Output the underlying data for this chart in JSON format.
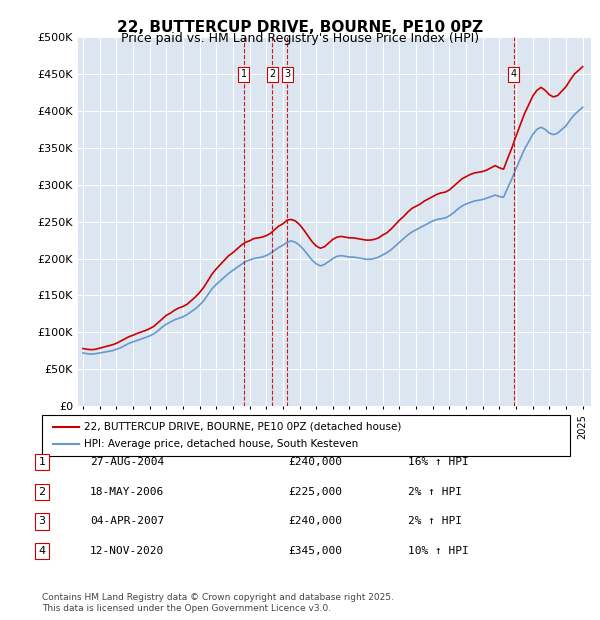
{
  "title": "22, BUTTERCUP DRIVE, BOURNE, PE10 0PZ",
  "subtitle": "Price paid vs. HM Land Registry's House Price Index (HPI)",
  "legend_line1": "22, BUTTERCUP DRIVE, BOURNE, PE10 0PZ (detached house)",
  "legend_line2": "HPI: Average price, detached house, South Kesteven",
  "footer": "Contains HM Land Registry data © Crown copyright and database right 2025.\nThis data is licensed under the Open Government Licence v3.0.",
  "ylabel_ticks": [
    "£0",
    "£50K",
    "£100K",
    "£150K",
    "£200K",
    "£250K",
    "£300K",
    "£350K",
    "£400K",
    "£450K",
    "£500K"
  ],
  "ylim": [
    0,
    500000
  ],
  "xlim_start": 1995.0,
  "xlim_end": 2025.5,
  "background_color": "#dce6f0",
  "plot_bg_color": "#dce6f0",
  "red_color": "#cc0000",
  "blue_color": "#6699cc",
  "purchases": [
    {
      "num": 1,
      "date": "27-AUG-2004",
      "price": 240000,
      "hpi_pct": "16% ↑ HPI",
      "x_year": 2004.65
    },
    {
      "num": 2,
      "date": "18-MAY-2006",
      "price": 225000,
      "hpi_pct": "2% ↑ HPI",
      "x_year": 2006.37
    },
    {
      "num": 3,
      "date": "04-APR-2007",
      "price": 240000,
      "hpi_pct": "2% ↑ HPI",
      "x_year": 2007.25
    },
    {
      "num": 4,
      "date": "12-NOV-2020",
      "price": 345000,
      "hpi_pct": "10% ↑ HPI",
      "x_year": 2020.87
    }
  ],
  "hpi_data_x": [
    1995.0,
    1995.25,
    1995.5,
    1995.75,
    1996.0,
    1996.25,
    1996.5,
    1996.75,
    1997.0,
    1997.25,
    1997.5,
    1997.75,
    1998.0,
    1998.25,
    1998.5,
    1998.75,
    1999.0,
    1999.25,
    1999.5,
    1999.75,
    2000.0,
    2000.25,
    2000.5,
    2000.75,
    2001.0,
    2001.25,
    2001.5,
    2001.75,
    2002.0,
    2002.25,
    2002.5,
    2002.75,
    2003.0,
    2003.25,
    2003.5,
    2003.75,
    2004.0,
    2004.25,
    2004.5,
    2004.75,
    2005.0,
    2005.25,
    2005.5,
    2005.75,
    2006.0,
    2006.25,
    2006.5,
    2006.75,
    2007.0,
    2007.25,
    2007.5,
    2007.75,
    2008.0,
    2008.25,
    2008.5,
    2008.75,
    2009.0,
    2009.25,
    2009.5,
    2009.75,
    2010.0,
    2010.25,
    2010.5,
    2010.75,
    2011.0,
    2011.25,
    2011.5,
    2011.75,
    2012.0,
    2012.25,
    2012.5,
    2012.75,
    2013.0,
    2013.25,
    2013.5,
    2013.75,
    2014.0,
    2014.25,
    2014.5,
    2014.75,
    2015.0,
    2015.25,
    2015.5,
    2015.75,
    2016.0,
    2016.25,
    2016.5,
    2016.75,
    2017.0,
    2017.25,
    2017.5,
    2017.75,
    2018.0,
    2018.25,
    2018.5,
    2018.75,
    2019.0,
    2019.25,
    2019.5,
    2019.75,
    2020.0,
    2020.25,
    2020.5,
    2020.75,
    2021.0,
    2021.25,
    2021.5,
    2021.75,
    2022.0,
    2022.25,
    2022.5,
    2022.75,
    2023.0,
    2023.25,
    2023.5,
    2023.75,
    2024.0,
    2024.25,
    2024.5,
    2024.75,
    2025.0
  ],
  "hpi_data_y": [
    72000,
    71000,
    70500,
    71000,
    72000,
    73000,
    74000,
    75000,
    77000,
    79000,
    82000,
    85000,
    87000,
    89000,
    91000,
    93000,
    95000,
    98000,
    102000,
    107000,
    111000,
    114000,
    117000,
    119000,
    121000,
    124000,
    128000,
    132000,
    137000,
    143000,
    151000,
    159000,
    165000,
    170000,
    175000,
    180000,
    184000,
    188000,
    192000,
    196000,
    198000,
    200000,
    201000,
    202000,
    204000,
    207000,
    211000,
    215000,
    218000,
    222000,
    224000,
    222000,
    218000,
    212000,
    205000,
    198000,
    193000,
    190000,
    192000,
    196000,
    200000,
    203000,
    204000,
    203000,
    202000,
    202000,
    201000,
    200000,
    199000,
    199000,
    200000,
    202000,
    205000,
    208000,
    212000,
    217000,
    222000,
    227000,
    232000,
    236000,
    239000,
    242000,
    245000,
    248000,
    251000,
    253000,
    254000,
    255000,
    258000,
    262000,
    267000,
    271000,
    274000,
    276000,
    278000,
    279000,
    280000,
    282000,
    284000,
    286000,
    284000,
    283000,
    296000,
    308000,
    322000,
    335000,
    348000,
    358000,
    368000,
    375000,
    378000,
    375000,
    370000,
    368000,
    370000,
    375000,
    380000,
    388000,
    395000,
    400000,
    405000
  ],
  "red_data_x": [
    1995.0,
    1995.25,
    1995.5,
    1995.75,
    1996.0,
    1996.25,
    1996.5,
    1996.75,
    1997.0,
    1997.25,
    1997.5,
    1997.75,
    1998.0,
    1998.25,
    1998.5,
    1998.75,
    1999.0,
    1999.25,
    1999.5,
    1999.75,
    2000.0,
    2000.25,
    2000.5,
    2000.75,
    2001.0,
    2001.25,
    2001.5,
    2001.75,
    2002.0,
    2002.25,
    2002.5,
    2002.75,
    2003.0,
    2003.25,
    2003.5,
    2003.75,
    2004.0,
    2004.25,
    2004.5,
    2004.75,
    2005.0,
    2005.25,
    2005.5,
    2005.75,
    2006.0,
    2006.25,
    2006.5,
    2006.75,
    2007.0,
    2007.25,
    2007.5,
    2007.75,
    2008.0,
    2008.25,
    2008.5,
    2008.75,
    2009.0,
    2009.25,
    2009.5,
    2009.75,
    2010.0,
    2010.25,
    2010.5,
    2010.75,
    2011.0,
    2011.25,
    2011.5,
    2011.75,
    2012.0,
    2012.25,
    2012.5,
    2012.75,
    2013.0,
    2013.25,
    2013.5,
    2013.75,
    2014.0,
    2014.25,
    2014.5,
    2014.75,
    2015.0,
    2015.25,
    2015.5,
    2015.75,
    2016.0,
    2016.25,
    2016.5,
    2016.75,
    2017.0,
    2017.25,
    2017.5,
    2017.75,
    2018.0,
    2018.25,
    2018.5,
    2018.75,
    2019.0,
    2019.25,
    2019.5,
    2019.75,
    2020.0,
    2020.25,
    2020.5,
    2020.75,
    2021.0,
    2021.25,
    2021.5,
    2021.75,
    2022.0,
    2022.25,
    2022.5,
    2022.75,
    2023.0,
    2023.25,
    2023.5,
    2023.75,
    2024.0,
    2024.25,
    2024.5,
    2024.75,
    2025.0
  ],
  "red_data_y": [
    78000,
    77000,
    76500,
    77000,
    78500,
    80000,
    81500,
    83000,
    85000,
    88000,
    91000,
    94000,
    96000,
    98500,
    100500,
    102500,
    105000,
    108000,
    113000,
    118000,
    123000,
    126000,
    130000,
    133000,
    135000,
    138000,
    143000,
    148000,
    154000,
    161000,
    170000,
    179000,
    186000,
    192000,
    198000,
    204000,
    208000,
    213000,
    218000,
    222000,
    224000,
    227000,
    228000,
    229000,
    231000,
    234000,
    239000,
    244000,
    247000,
    252000,
    253000,
    251000,
    246000,
    239000,
    231000,
    223000,
    217000,
    214000,
    216000,
    221000,
    226000,
    229000,
    230000,
    229000,
    228000,
    228000,
    227000,
    226000,
    225000,
    225000,
    226000,
    228000,
    232000,
    235000,
    240000,
    246000,
    252000,
    257000,
    263000,
    268000,
    271000,
    274000,
    278000,
    281000,
    284000,
    287000,
    289000,
    290000,
    293000,
    298000,
    303000,
    308000,
    311000,
    314000,
    316000,
    317000,
    318000,
    320000,
    323000,
    326000,
    323000,
    321000,
    336000,
    350000,
    366000,
    381000,
    396000,
    408000,
    420000,
    428000,
    432000,
    428000,
    422000,
    419000,
    421000,
    427000,
    433000,
    442000,
    450000,
    455000,
    460000
  ]
}
